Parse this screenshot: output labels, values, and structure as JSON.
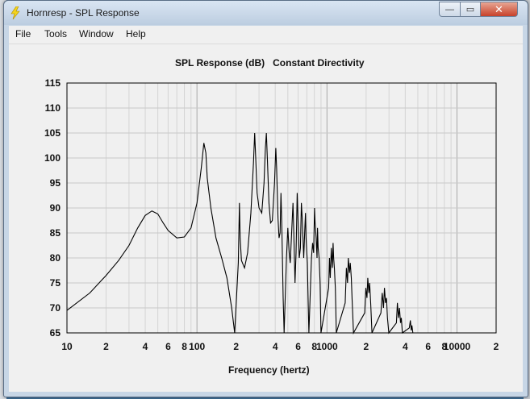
{
  "window": {
    "title": "Hornresp - SPL Response",
    "min_glyph": "—",
    "max_glyph": "▭",
    "close_glyph": "✕",
    "icon": "lightning-icon"
  },
  "menu": {
    "items": [
      "File",
      "Tools",
      "Window",
      "Help"
    ]
  },
  "chart_data": {
    "type": "line",
    "title": "SPL Response (dB)   Constant Directivity",
    "xlabel": "Frequency (hertz)",
    "ylabel": "",
    "xscale": "log",
    "xlim": [
      10,
      20000
    ],
    "ylim": [
      65,
      115
    ],
    "y_ticks": [
      "115",
      "110",
      "105",
      "100",
      "95",
      "90",
      "85",
      "80",
      "75",
      "70",
      "65"
    ],
    "x_ticks": [
      {
        "v": 10,
        "t": "10"
      },
      {
        "v": 20,
        "t": "2"
      },
      {
        "v": 40,
        "t": "4"
      },
      {
        "v": 60,
        "t": "6"
      },
      {
        "v": 80,
        "t": "8"
      },
      {
        "v": 100,
        "t": "100"
      },
      {
        "v": 200,
        "t": "2"
      },
      {
        "v": 400,
        "t": "4"
      },
      {
        "v": 600,
        "t": "6"
      },
      {
        "v": 800,
        "t": "8"
      },
      {
        "v": 1000,
        "t": "1000"
      },
      {
        "v": 2000,
        "t": "2"
      },
      {
        "v": 4000,
        "t": "4"
      },
      {
        "v": 6000,
        "t": "6"
      },
      {
        "v": 8000,
        "t": "8"
      },
      {
        "v": 10000,
        "t": "10000"
      },
      {
        "v": 20000,
        "t": "2"
      }
    ],
    "grid": true,
    "series": [
      {
        "color": "#000000",
        "points": [
          [
            10,
            69.5
          ],
          [
            15,
            73
          ],
          [
            20,
            76.5
          ],
          [
            25,
            79.5
          ],
          [
            30,
            82.5
          ],
          [
            35,
            86
          ],
          [
            40,
            88.5
          ],
          [
            45,
            89.4
          ],
          [
            50,
            88.8
          ],
          [
            55,
            87
          ],
          [
            60,
            85.5
          ],
          [
            70,
            84
          ],
          [
            80,
            84.2
          ],
          [
            90,
            86
          ],
          [
            100,
            91
          ],
          [
            108,
            98
          ],
          [
            113,
            103
          ],
          [
            117,
            101
          ],
          [
            120,
            96
          ],
          [
            128,
            90
          ],
          [
            140,
            84
          ],
          [
            155,
            80
          ],
          [
            170,
            76
          ],
          [
            185,
            70
          ],
          [
            195,
            65
          ],
          [
            208,
            79
          ],
          [
            212,
            91
          ],
          [
            215,
            84
          ],
          [
            220,
            79.5
          ],
          [
            232,
            78
          ],
          [
            245,
            81
          ],
          [
            260,
            89
          ],
          [
            272,
            99
          ],
          [
            278,
            105
          ],
          [
            283,
            100
          ],
          [
            290,
            93
          ],
          [
            300,
            90
          ],
          [
            315,
            89
          ],
          [
            328,
            95
          ],
          [
            336,
            102
          ],
          [
            342,
            105
          ],
          [
            348,
            100
          ],
          [
            358,
            91
          ],
          [
            368,
            87
          ],
          [
            380,
            87.5
          ],
          [
            395,
            95
          ],
          [
            404,
            102
          ],
          [
            410,
            98
          ],
          [
            420,
            88
          ],
          [
            428,
            84
          ],
          [
            436,
            85
          ],
          [
            443,
            93
          ],
          [
            450,
            86
          ],
          [
            460,
            72
          ],
          [
            468,
            65
          ],
          [
            488,
            80
          ],
          [
            500,
            86
          ],
          [
            512,
            81
          ],
          [
            522,
            79
          ],
          [
            535,
            85
          ],
          [
            548,
            91
          ],
          [
            556,
            85
          ],
          [
            568,
            75
          ],
          [
            578,
            81
          ],
          [
            590,
            93
          ],
          [
            600,
            87
          ],
          [
            612,
            80
          ],
          [
            625,
            82
          ],
          [
            636,
            91
          ],
          [
            645,
            88
          ],
          [
            662,
            80
          ],
          [
            676,
            86
          ],
          [
            684,
            89
          ],
          [
            690,
            84
          ],
          [
            706,
            79
          ],
          [
            716,
            72
          ],
          [
            726,
            65
          ],
          [
            760,
            80
          ],
          [
            775,
            83
          ],
          [
            790,
            81
          ],
          [
            802,
            90
          ],
          [
            810,
            87
          ],
          [
            826,
            84
          ],
          [
            838,
            80
          ],
          [
            846,
            86
          ],
          [
            856,
            82
          ],
          [
            870,
            80
          ],
          [
            885,
            75
          ],
          [
            900,
            65
          ],
          [
            1030,
            74
          ],
          [
            1045,
            80
          ],
          [
            1060,
            76
          ],
          [
            1080,
            82
          ],
          [
            1100,
            78
          ],
          [
            1115,
            83
          ],
          [
            1125,
            80
          ],
          [
            1140,
            78
          ],
          [
            1160,
            74
          ],
          [
            1180,
            65
          ],
          [
            1380,
            71
          ],
          [
            1410,
            78
          ],
          [
            1440,
            75
          ],
          [
            1460,
            80
          ],
          [
            1490,
            77
          ],
          [
            1510,
            79
          ],
          [
            1540,
            76
          ],
          [
            1560,
            72
          ],
          [
            1600,
            65
          ],
          [
            1950,
            69
          ],
          [
            1990,
            74
          ],
          [
            2030,
            72
          ],
          [
            2060,
            76
          ],
          [
            2100,
            73
          ],
          [
            2130,
            75
          ],
          [
            2170,
            71
          ],
          [
            2220,
            65
          ],
          [
            2600,
            69
          ],
          [
            2660,
            73
          ],
          [
            2720,
            70
          ],
          [
            2770,
            74
          ],
          [
            2820,
            71
          ],
          [
            2870,
            72
          ],
          [
            2920,
            68
          ],
          [
            2990,
            65
          ],
          [
            3420,
            67
          ],
          [
            3480,
            71
          ],
          [
            3550,
            68
          ],
          [
            3610,
            70
          ],
          [
            3680,
            67
          ],
          [
            3730,
            68
          ],
          [
            3800,
            65
          ],
          [
            4300,
            66
          ],
          [
            4380,
            67.5
          ],
          [
            4450,
            65.5
          ],
          [
            4500,
            66.5
          ],
          [
            4580,
            65
          ]
        ]
      }
    ]
  }
}
